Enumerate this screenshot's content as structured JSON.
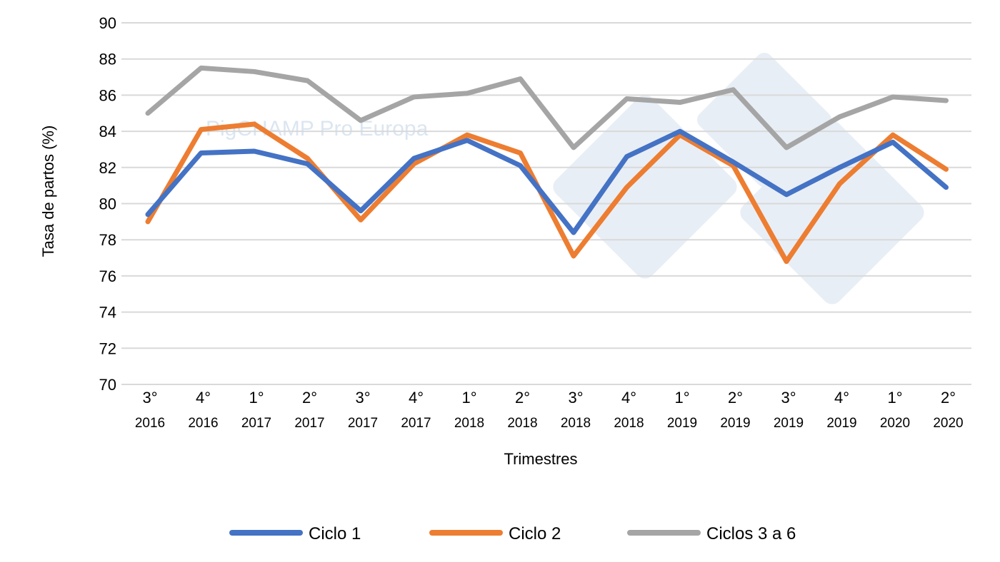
{
  "chart_data": {
    "type": "line",
    "title": "",
    "xlabel": "Trimestres",
    "ylabel": "Tasa de partos (%)",
    "ylim": [
      70,
      90
    ],
    "yticks": [
      70,
      72,
      74,
      76,
      78,
      80,
      82,
      84,
      86,
      88,
      90
    ],
    "grid": true,
    "legend_position": "bottom",
    "categories": [
      [
        "3°",
        "2016"
      ],
      [
        "4°",
        "2016"
      ],
      [
        "1°",
        "2017"
      ],
      [
        "2°",
        "2017"
      ],
      [
        "3°",
        "2017"
      ],
      [
        "4°",
        "2017"
      ],
      [
        "1°",
        "2018"
      ],
      [
        "2°",
        "2018"
      ],
      [
        "3°",
        "2018"
      ],
      [
        "4°",
        "2018"
      ],
      [
        "1°",
        "2019"
      ],
      [
        "2°",
        "2019"
      ],
      [
        "3°",
        "2019"
      ],
      [
        "4°",
        "2019"
      ],
      [
        "1°",
        "2020"
      ],
      [
        "2°",
        "2020"
      ]
    ],
    "series": [
      {
        "name": "Ciclo 1",
        "color": "#4472C4",
        "values": [
          79.4,
          82.8,
          82.9,
          82.2,
          79.6,
          82.5,
          83.5,
          82.1,
          78.4,
          82.6,
          84.0,
          82.3,
          80.5,
          82.0,
          83.4,
          80.9
        ]
      },
      {
        "name": "Ciclo 2",
        "color": "#ED7D31",
        "values": [
          79.0,
          84.1,
          84.4,
          82.5,
          79.1,
          82.2,
          83.8,
          82.8,
          77.1,
          80.9,
          83.8,
          82.1,
          76.8,
          81.1,
          83.8,
          81.9
        ]
      },
      {
        "name": "Ciclos 3 a 6",
        "color": "#A5A5A5",
        "values": [
          85.0,
          87.5,
          87.3,
          86.8,
          84.6,
          85.9,
          86.1,
          86.9,
          83.1,
          85.8,
          85.6,
          86.3,
          83.1,
          84.8,
          85.9,
          85.7
        ]
      }
    ]
  },
  "watermark": {
    "text": "PigCHAMP Pro Europa",
    "logo": "333"
  }
}
